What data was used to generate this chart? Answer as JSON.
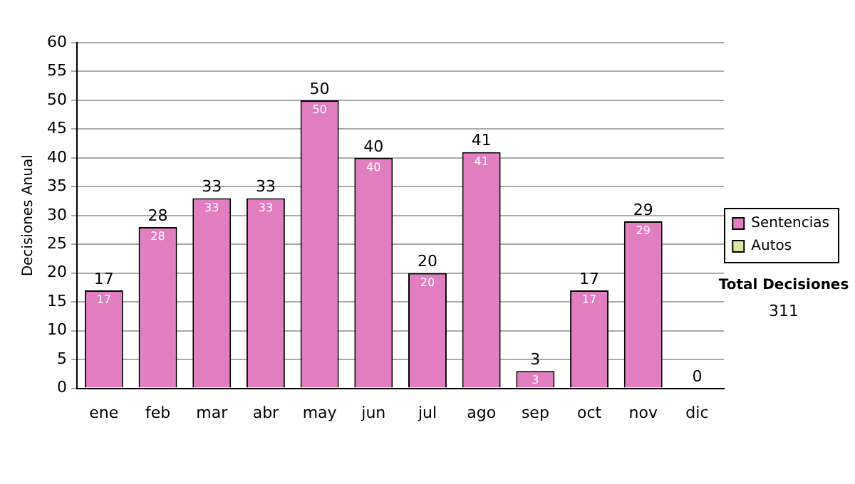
{
  "chart_data": {
    "type": "bar",
    "stacked": true,
    "ylabel": "Decisiones Anual",
    "categories": [
      "ene",
      "feb",
      "mar",
      "abr",
      "may",
      "jun",
      "jul",
      "ago",
      "sep",
      "oct",
      "nov",
      "dic"
    ],
    "series": [
      {
        "name": "Sentencias",
        "color": "#e07ec0",
        "values": [
          17,
          28,
          33,
          33,
          50,
          40,
          20,
          41,
          3,
          17,
          29,
          0
        ],
        "value_labels": [
          "17",
          "28",
          "33",
          "33",
          "50",
          "40",
          "20",
          "41",
          "3",
          "17",
          "29",
          null
        ]
      },
      {
        "name": "Autos",
        "color": "#d8e8a0",
        "values": [
          0,
          0,
          0,
          0,
          0,
          0,
          0,
          0,
          0,
          0,
          0,
          0
        ]
      }
    ],
    "totals": [
      "17",
      "28",
      "33",
      "33",
      "50",
      "40",
      "20",
      "41",
      "3",
      "17",
      "29",
      "0"
    ],
    "ylim": [
      0,
      60
    ],
    "yticks": [
      0,
      5,
      10,
      15,
      20,
      25,
      30,
      35,
      40,
      45,
      50,
      55,
      60
    ],
    "grid": "y",
    "legend": "right",
    "annotations": [
      "Total Decisiones",
      "311"
    ]
  }
}
